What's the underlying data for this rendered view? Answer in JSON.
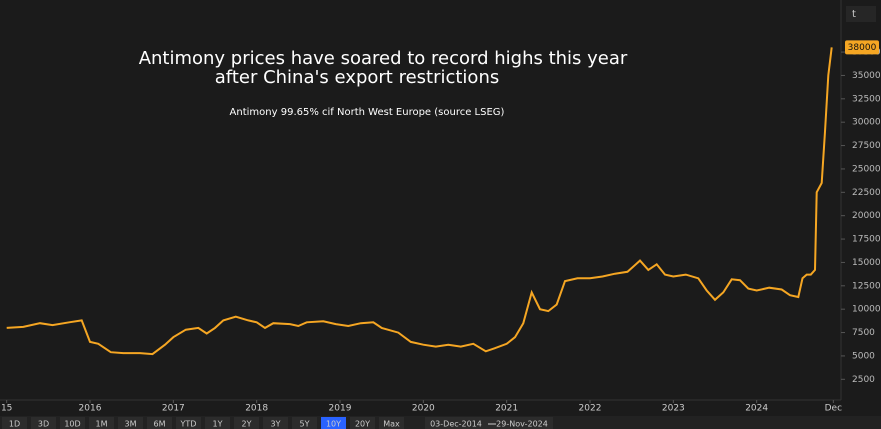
{
  "chart_data": {
    "type": "line",
    "title": [
      "Antimony prices have soared to record highs this year",
      "after China's export restrictions"
    ],
    "subtitle": "Antimony 99.65% cif North West Europe (source LSEG)",
    "x": [
      2015.0,
      2015.2,
      2015.4,
      2015.55,
      2015.75,
      2015.9,
      2016.0,
      2016.1,
      2016.25,
      2016.4,
      2016.6,
      2016.75,
      2016.9,
      2017.0,
      2017.15,
      2017.3,
      2017.4,
      2017.5,
      2017.6,
      2017.75,
      2017.9,
      2018.0,
      2018.1,
      2018.2,
      2018.4,
      2018.5,
      2018.6,
      2018.8,
      2018.95,
      2019.1,
      2019.25,
      2019.4,
      2019.5,
      2019.7,
      2019.85,
      2020.0,
      2020.15,
      2020.3,
      2020.45,
      2020.6,
      2020.75,
      2020.85,
      2021.0,
      2021.1,
      2021.2,
      2021.3,
      2021.4,
      2021.5,
      2021.6,
      2021.7,
      2021.85,
      2022.0,
      2022.15,
      2022.3,
      2022.45,
      2022.6,
      2022.7,
      2022.8,
      2022.9,
      2023.0,
      2023.15,
      2023.3,
      2023.4,
      2023.5,
      2023.6,
      2023.7,
      2023.8,
      2023.9,
      2024.0,
      2024.15,
      2024.3,
      2024.4,
      2024.5,
      2024.55,
      2024.6,
      2024.65,
      2024.7,
      2024.72,
      2024.78,
      2024.82,
      2024.86,
      2024.9
    ],
    "values": [
      8000,
      8100,
      8500,
      8300,
      8600,
      8800,
      6500,
      6300,
      5400,
      5300,
      5300,
      5200,
      6200,
      7000,
      7800,
      8000,
      7400,
      8000,
      8800,
      9200,
      8800,
      8600,
      8000,
      8500,
      8400,
      8200,
      8600,
      8700,
      8400,
      8200,
      8500,
      8600,
      8000,
      7500,
      6500,
      6200,
      6000,
      6200,
      6000,
      6300,
      5500,
      5800,
      6300,
      7000,
      8500,
      11800,
      10000,
      9800,
      10500,
      13000,
      13300,
      13300,
      13500,
      13800,
      14000,
      15200,
      14200,
      14800,
      13700,
      13500,
      13700,
      13300,
      12000,
      11000,
      11800,
      13200,
      13100,
      12200,
      12000,
      12300,
      12100,
      11500,
      11300,
      13300,
      13700,
      13700,
      14200,
      22500,
      23500,
      29000,
      35000,
      38000
    ],
    "color": "#f5a623",
    "xlim": [
      2014.92,
      2025.0
    ],
    "xticks": [
      {
        "value": 2015,
        "label": "15"
      },
      2016,
      2017,
      2018,
      2019,
      2020,
      2021,
      2022,
      2023,
      2024,
      {
        "value": 2024.92,
        "label": "Dec"
      }
    ],
    "ylim": [
      500,
      42000
    ],
    "yticks": [
      2500,
      5000,
      7500,
      10000,
      12500,
      15000,
      17500,
      20000,
      22500,
      25000,
      27500,
      30000,
      32500,
      35000,
      37500
    ],
    "grid": false
  },
  "toolbar": {
    "ranges": [
      "1D",
      "3D",
      "10D",
      "1M",
      "3M",
      "6M",
      "YTD",
      "1Y",
      "2Y",
      "3Y",
      "5Y",
      "10Y",
      "20Y",
      "Max"
    ],
    "active": "10Y",
    "start": "03-Dec-2014",
    "end": "29-Nov-2024",
    "unit": "t"
  }
}
